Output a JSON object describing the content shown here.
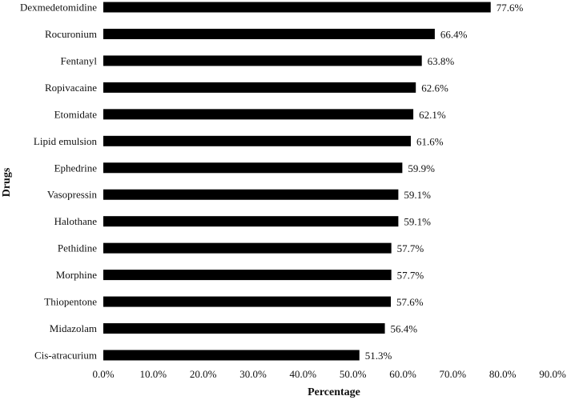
{
  "chart_data": {
    "type": "bar",
    "orientation": "horizontal",
    "categories": [
      "Dexmedetomidine",
      "Rocuronium",
      "Fentanyl",
      "Ropivacaine",
      "Etomidate",
      "Lipid emulsion",
      "Ephedrine",
      "Vasopressin",
      "Halothane",
      "Pethidine",
      "Morphine",
      "Thiopentone",
      "Midazolam",
      "Cis-atracurium"
    ],
    "values": [
      77.6,
      66.4,
      63.8,
      62.6,
      62.1,
      61.6,
      59.9,
      59.1,
      59.1,
      57.7,
      57.7,
      57.6,
      56.4,
      51.3
    ],
    "value_labels": [
      "77.6%",
      "66.4%",
      "63.8%",
      "62.6%",
      "62.1%",
      "61.6%",
      "59.9%",
      "59.1%",
      "59.1%",
      "57.7%",
      "57.7%",
      "57.6%",
      "56.4%",
      "51.3%"
    ],
    "xlim": [
      0,
      90
    ],
    "x_ticks": [
      0,
      10,
      20,
      30,
      40,
      50,
      60,
      70,
      80,
      90
    ],
    "x_tick_labels": [
      "0.0%",
      "10.0%",
      "20.0%",
      "30.0%",
      "40.0%",
      "50.0%",
      "60.0%",
      "70.0%",
      "80.0%",
      "90.0%"
    ],
    "xlabel": "Percentage",
    "ylabel": "Drugs",
    "title": "",
    "grid": false,
    "legend": "none",
    "bar_color": "#000000"
  }
}
